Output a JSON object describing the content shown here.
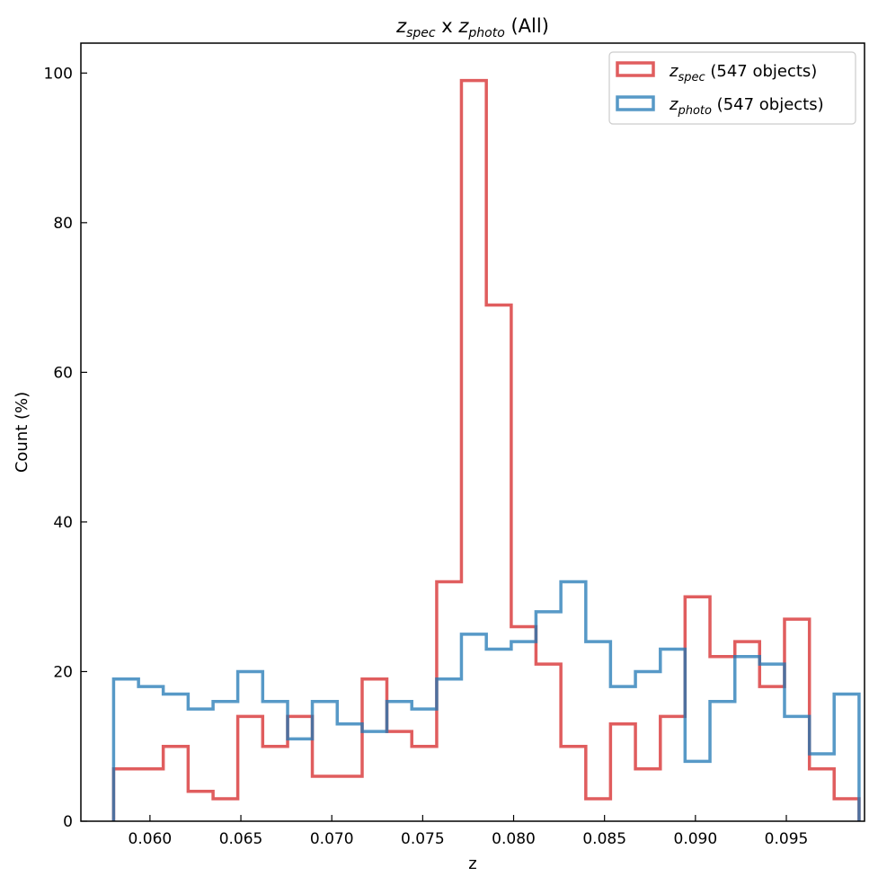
{
  "chart_data": {
    "type": "histogram",
    "title": {
      "z1": "z",
      "s1": "spec",
      "mid": " x ",
      "z2": "z",
      "s2": "photo",
      "rest": " (All)"
    },
    "xlabel": "z",
    "ylabel": "Count (%)",
    "xlim": [
      0.0562,
      0.0993
    ],
    "ylim": [
      0,
      104
    ],
    "xticks": [
      0.06,
      0.065,
      0.07,
      0.075,
      0.08,
      0.085,
      0.09,
      0.095
    ],
    "xtick_labels": [
      "0.060",
      "0.065",
      "0.070",
      "0.075",
      "0.080",
      "0.085",
      "0.090",
      "0.095"
    ],
    "yticks": [
      0,
      20,
      40,
      60,
      80,
      100
    ],
    "ytick_labels": [
      "0",
      "20",
      "40",
      "60",
      "80",
      "100"
    ],
    "grid": false,
    "legend_position": "top-right",
    "bin_edges": [
      0.058,
      0.05937,
      0.06073,
      0.0621,
      0.06347,
      0.06483,
      0.0662,
      0.06757,
      0.06893,
      0.0703,
      0.07167,
      0.07303,
      0.0744,
      0.07577,
      0.07713,
      0.0785,
      0.07987,
      0.08123,
      0.0826,
      0.08397,
      0.08533,
      0.0867,
      0.08807,
      0.08943,
      0.0908,
      0.09217,
      0.09353,
      0.0949,
      0.09627,
      0.09763,
      0.099
    ],
    "series": [
      {
        "key": "spec",
        "legend": {
          "z": "z",
          "sub": "spec",
          "rest": " (547 objects)"
        },
        "color": "#d62728",
        "values": [
          7,
          7,
          10,
          4,
          3,
          14,
          10,
          14,
          6,
          6,
          19,
          12,
          10,
          32,
          99,
          69,
          26,
          21,
          10,
          3,
          13,
          7,
          14,
          30,
          22,
          24,
          18,
          27,
          7,
          3
        ]
      },
      {
        "key": "photo",
        "legend": {
          "z": "z",
          "sub": "photo",
          "rest": " (547 objects)"
        },
        "color": "#1f77b4",
        "values": [
          19,
          18,
          17,
          15,
          16,
          20,
          16,
          11,
          16,
          13,
          12,
          16,
          15,
          19,
          25,
          23,
          24,
          28,
          32,
          24,
          18,
          20,
          23,
          8,
          16,
          22,
          21,
          14,
          9,
          17
        ]
      }
    ]
  }
}
